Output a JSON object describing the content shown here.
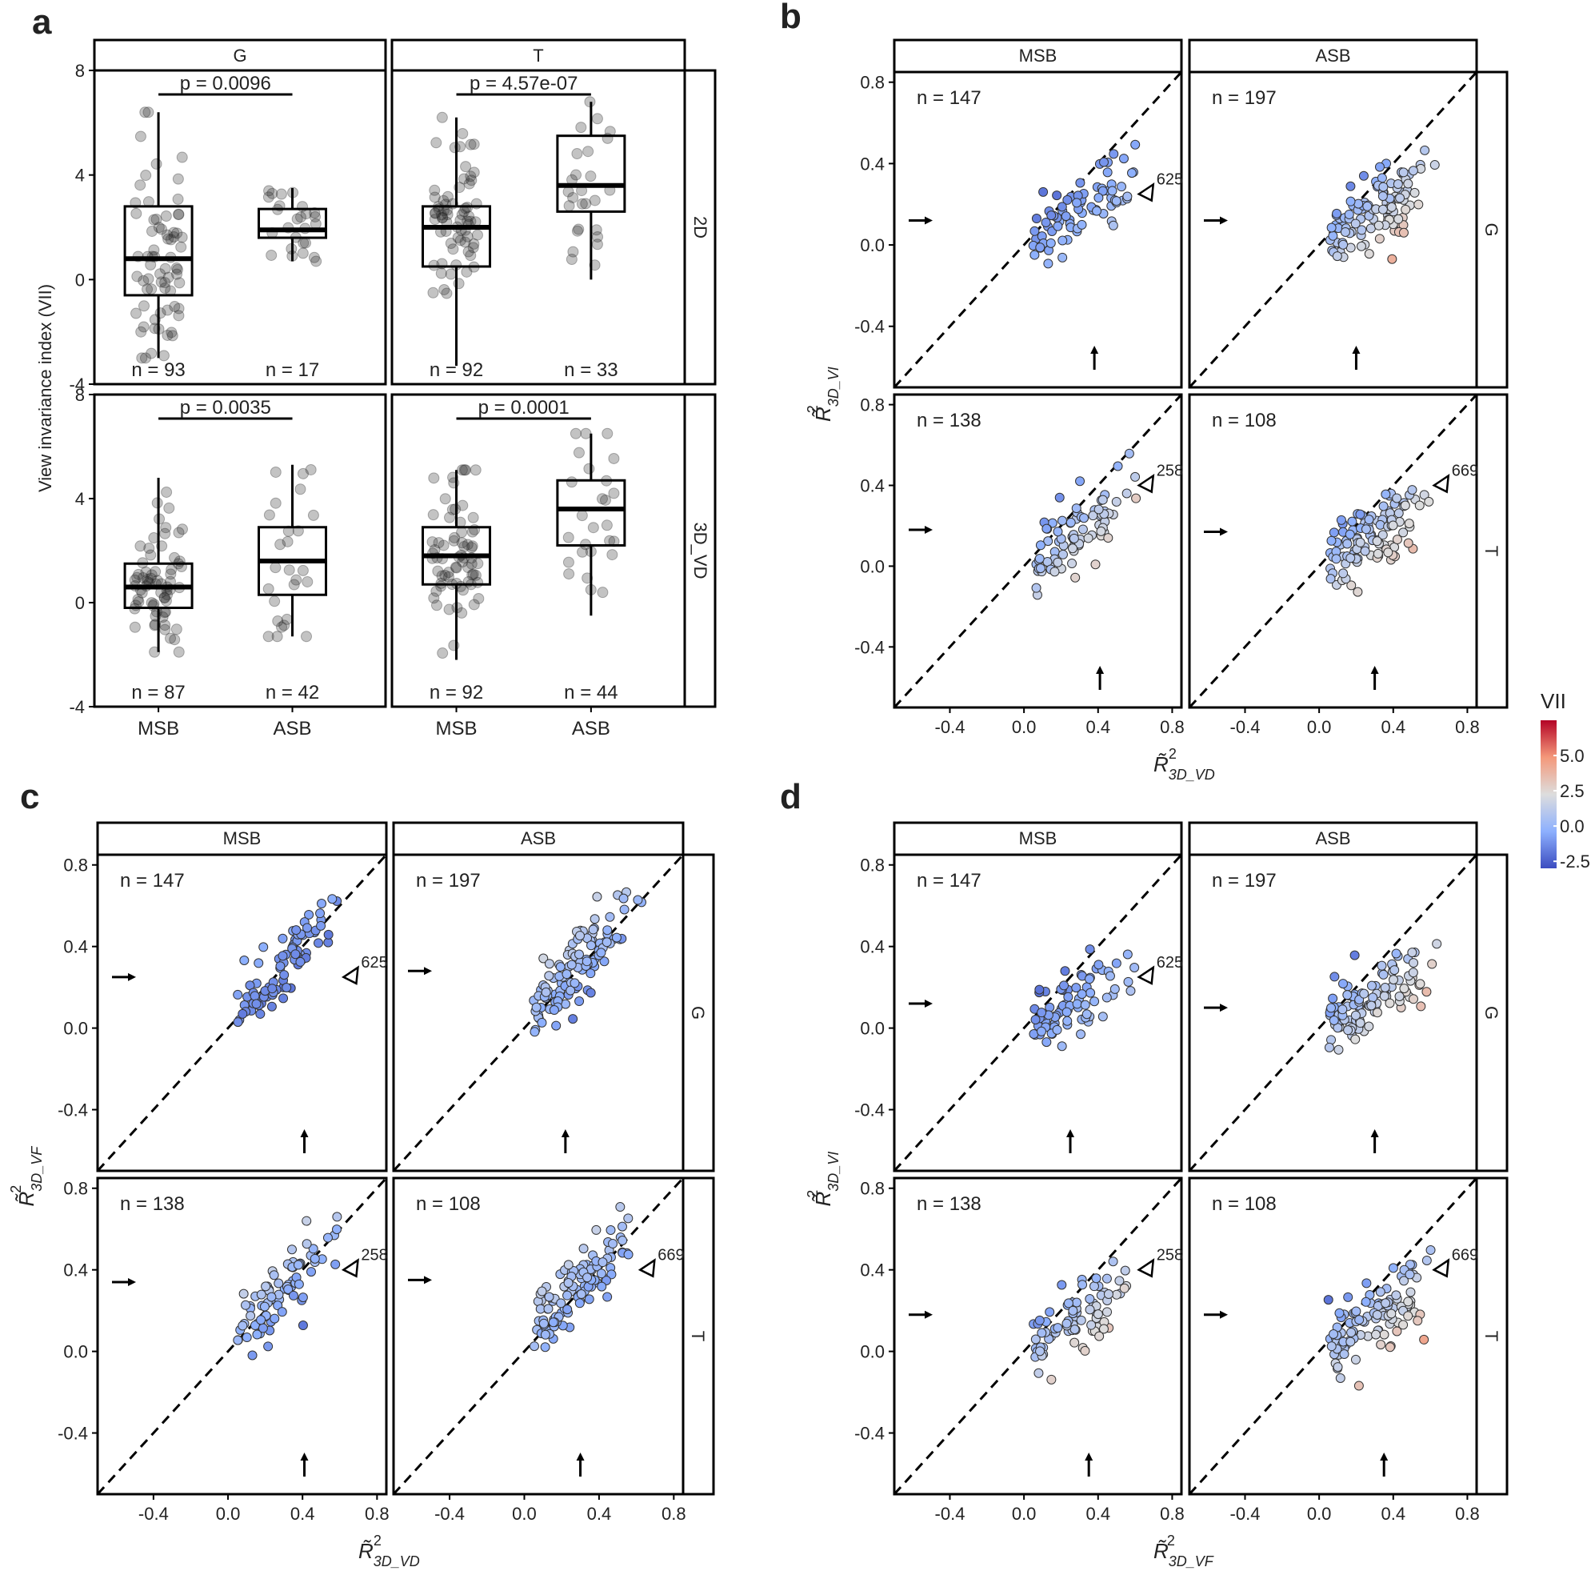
{
  "figure": {
    "colorbar": {
      "title": "VII",
      "ticks": [
        "5.0",
        "2.5",
        "0.0",
        "-2.5"
      ],
      "colors": [
        "#3b4cc0",
        "#8db0fe",
        "#dddddd",
        "#f4987a",
        "#b40426"
      ]
    }
  },
  "chart_data": [
    {
      "panel": "a",
      "type": "box",
      "ylabel": "View invariance index (VII)",
      "yticks": [
        "8",
        "4",
        "0",
        "-4"
      ],
      "ylim": [
        -4,
        8
      ],
      "categories": [
        "MSB",
        "ASB"
      ],
      "facets": [
        {
          "col": "G",
          "row": "2D",
          "pvalue": "p = 0.0096",
          "n_labels": [
            "n = 93",
            "n = 17"
          ],
          "boxes": [
            {
              "q1": -0.6,
              "median": 0.8,
              "q3": 2.8,
              "wlo": -3.0,
              "whi": 6.4
            },
            {
              "q1": 1.6,
              "median": 1.9,
              "q3": 2.7,
              "wlo": 0.7,
              "whi": 3.5
            }
          ]
        },
        {
          "col": "T",
          "row": "2D",
          "pvalue": "p = 4.57e-07",
          "n_labels": [
            "n = 92",
            "n = 33"
          ],
          "boxes": [
            {
              "q1": 0.5,
              "median": 2.0,
              "q3": 2.8,
              "wlo": -3.3,
              "whi": 6.2
            },
            {
              "q1": 2.6,
              "median": 3.6,
              "q3": 5.5,
              "wlo": 0.0,
              "whi": 6.8
            }
          ]
        },
        {
          "col": "G",
          "row": "3D_VD",
          "pvalue": "p = 0.0035",
          "n_labels": [
            "n = 87",
            "n = 42"
          ],
          "boxes": [
            {
              "q1": -0.2,
              "median": 0.6,
              "q3": 1.5,
              "wlo": -1.9,
              "whi": 4.8
            },
            {
              "q1": 0.3,
              "median": 1.6,
              "q3": 2.9,
              "wlo": -1.3,
              "whi": 5.3
            }
          ]
        },
        {
          "col": "T",
          "row": "3D_VD",
          "pvalue": "p = 0.0001",
          "n_labels": [
            "n = 92",
            "n = 44"
          ],
          "boxes": [
            {
              "q1": 0.7,
              "median": 1.8,
              "q3": 2.9,
              "wlo": -2.2,
              "whi": 5.1
            },
            {
              "q1": 2.2,
              "median": 3.6,
              "q3": 4.7,
              "wlo": -0.5,
              "whi": 6.5
            }
          ]
        }
      ]
    },
    {
      "panel": "b",
      "type": "scatter",
      "xlabel_base": "R",
      "xlabel_sub": "3D_VD",
      "ylabel_base": "R",
      "ylabel_sub": "3D_VI",
      "xlim": [
        -0.7,
        0.85
      ],
      "ylim": [
        -0.7,
        0.85
      ],
      "xticks": [
        "-0.4",
        "0.0",
        "0.4",
        "0.8"
      ],
      "yticks": [
        "0.8",
        "0.4",
        "0.0",
        "-0.4"
      ],
      "cols": [
        "MSB",
        "ASB"
      ],
      "rows": [
        "G",
        "T"
      ],
      "facets": [
        {
          "n": "n = 147",
          "tag": "625",
          "arrow_x": 0.38,
          "arrow_y": 0.12
        },
        {
          "n": "n = 197",
          "tag": "",
          "arrow_x": 0.2,
          "arrow_y": 0.12
        },
        {
          "n": "n = 138",
          "tag": "258",
          "arrow_x": 0.41,
          "arrow_y": 0.18
        },
        {
          "n": "n = 108",
          "tag": "669",
          "arrow_x": 0.3,
          "arrow_y": 0.17
        }
      ]
    },
    {
      "panel": "c",
      "type": "scatter",
      "xlabel_base": "R",
      "xlabel_sub": "3D_VD",
      "ylabel_base": "R",
      "ylabel_sub": "3D_VF",
      "xlim": [
        -0.7,
        0.85
      ],
      "ylim": [
        -0.7,
        0.85
      ],
      "xticks": [
        "-0.4",
        "0.0",
        "0.4",
        "0.8"
      ],
      "yticks": [
        "0.8",
        "0.4",
        "0.0",
        "-0.4"
      ],
      "cols": [
        "MSB",
        "ASB"
      ],
      "rows": [
        "G",
        "T"
      ],
      "facets": [
        {
          "n": "n = 147",
          "tag": "625",
          "arrow_x": 0.41,
          "arrow_y": 0.25
        },
        {
          "n": "n = 197",
          "tag": "",
          "arrow_x": 0.22,
          "arrow_y": 0.28
        },
        {
          "n": "n = 138",
          "tag": "258",
          "arrow_x": 0.41,
          "arrow_y": 0.34
        },
        {
          "n": "n = 108",
          "tag": "669",
          "arrow_x": 0.3,
          "arrow_y": 0.35
        }
      ]
    },
    {
      "panel": "d",
      "type": "scatter",
      "xlabel_base": "R",
      "xlabel_sub": "3D_VF",
      "ylabel_base": "R",
      "ylabel_sub": "3D_VI",
      "xlim": [
        -0.7,
        0.85
      ],
      "ylim": [
        -0.7,
        0.85
      ],
      "xticks": [
        "-0.4",
        "0.0",
        "0.4",
        "0.8"
      ],
      "yticks": [
        "0.8",
        "0.4",
        "0.0",
        "-0.4"
      ],
      "cols": [
        "MSB",
        "ASB"
      ],
      "rows": [
        "G",
        "T"
      ],
      "facets": [
        {
          "n": "n = 147",
          "tag": "625",
          "arrow_x": 0.25,
          "arrow_y": 0.12
        },
        {
          "n": "n = 197",
          "tag": "",
          "arrow_x": 0.3,
          "arrow_y": 0.1
        },
        {
          "n": "n = 138",
          "tag": "258",
          "arrow_x": 0.35,
          "arrow_y": 0.18
        },
        {
          "n": "n = 108",
          "tag": "669",
          "arrow_x": 0.35,
          "arrow_y": 0.18
        }
      ]
    }
  ]
}
